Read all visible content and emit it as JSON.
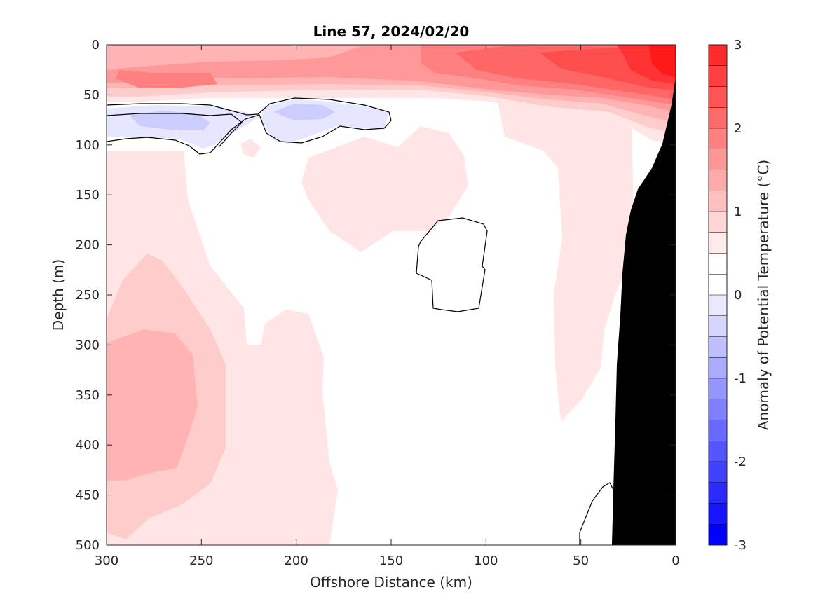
{
  "chart_data": {
    "type": "contour",
    "title": "Line 57, 2024/02/20",
    "xlabel": "Offshore Distance (km)",
    "ylabel": "Depth (m)",
    "colorbar_label": "Anomaly of Potential Temperature (°C)",
    "xlim": [
      300,
      0
    ],
    "ylim": [
      500,
      0
    ],
    "x_reversed": true,
    "y_reversed": true,
    "x_ticks": [
      300,
      250,
      200,
      150,
      100,
      50,
      0
    ],
    "y_ticks": [
      0,
      50,
      100,
      150,
      200,
      250,
      300,
      350,
      400,
      450,
      500
    ],
    "colorbar_ticks": [
      3,
      2,
      1,
      0,
      -1,
      -2,
      -3
    ],
    "colorbar_range": [
      -3,
      3
    ],
    "colorbar_levels": [
      -3,
      -2.75,
      -2.5,
      -2.25,
      -2,
      -1.75,
      -1.5,
      -1.25,
      -1,
      -0.75,
      -0.5,
      -0.25,
      0,
      0.25,
      0.5,
      0.75,
      1,
      1.25,
      1.5,
      1.75,
      2,
      2.25,
      2.5,
      2.75,
      3
    ],
    "colorbar_colors": [
      "#0000ff",
      "#1515ff",
      "#2b2bff",
      "#4040ff",
      "#5555ff",
      "#6a6aff",
      "#8080ff",
      "#9595ff",
      "#aaaaff",
      "#bfbfff",
      "#d5d5ff",
      "#eaeaff",
      "#ffffff",
      "#ffffff",
      "#ffeaea",
      "#ffd5d5",
      "#ffbfbf",
      "#ffaaaa",
      "#ff9595",
      "#ff8080",
      "#ff6a6a",
      "#ff5555",
      "#ff4040",
      "#ff2b2b",
      "#ff0000"
    ],
    "zero_contour": "black line at 0 °C",
    "bathymetry_color": "#000000",
    "features": [
      {
        "name": "warm surface layer",
        "anomaly": [
          0.5,
          3.0
        ],
        "depth_m": [
          0,
          55
        ],
        "max_near_km": 0
      },
      {
        "name": "cold subsurface lens",
        "anomaly": [
          -0.75,
          -0.25
        ],
        "depth_m": [
          60,
          110
        ],
        "x_km": [
          150,
          300
        ]
      },
      {
        "name": "offshore warm core",
        "anomaly": [
          0.75,
          1.0
        ],
        "depth_m": [
          290,
          440
        ],
        "x_km": [
          260,
          300
        ]
      },
      {
        "name": "zero-anomaly patch",
        "anomaly": [
          0,
          0.25
        ],
        "depth_m": [
          175,
          270
        ],
        "x_km": [
          100,
          135
        ]
      }
    ]
  }
}
